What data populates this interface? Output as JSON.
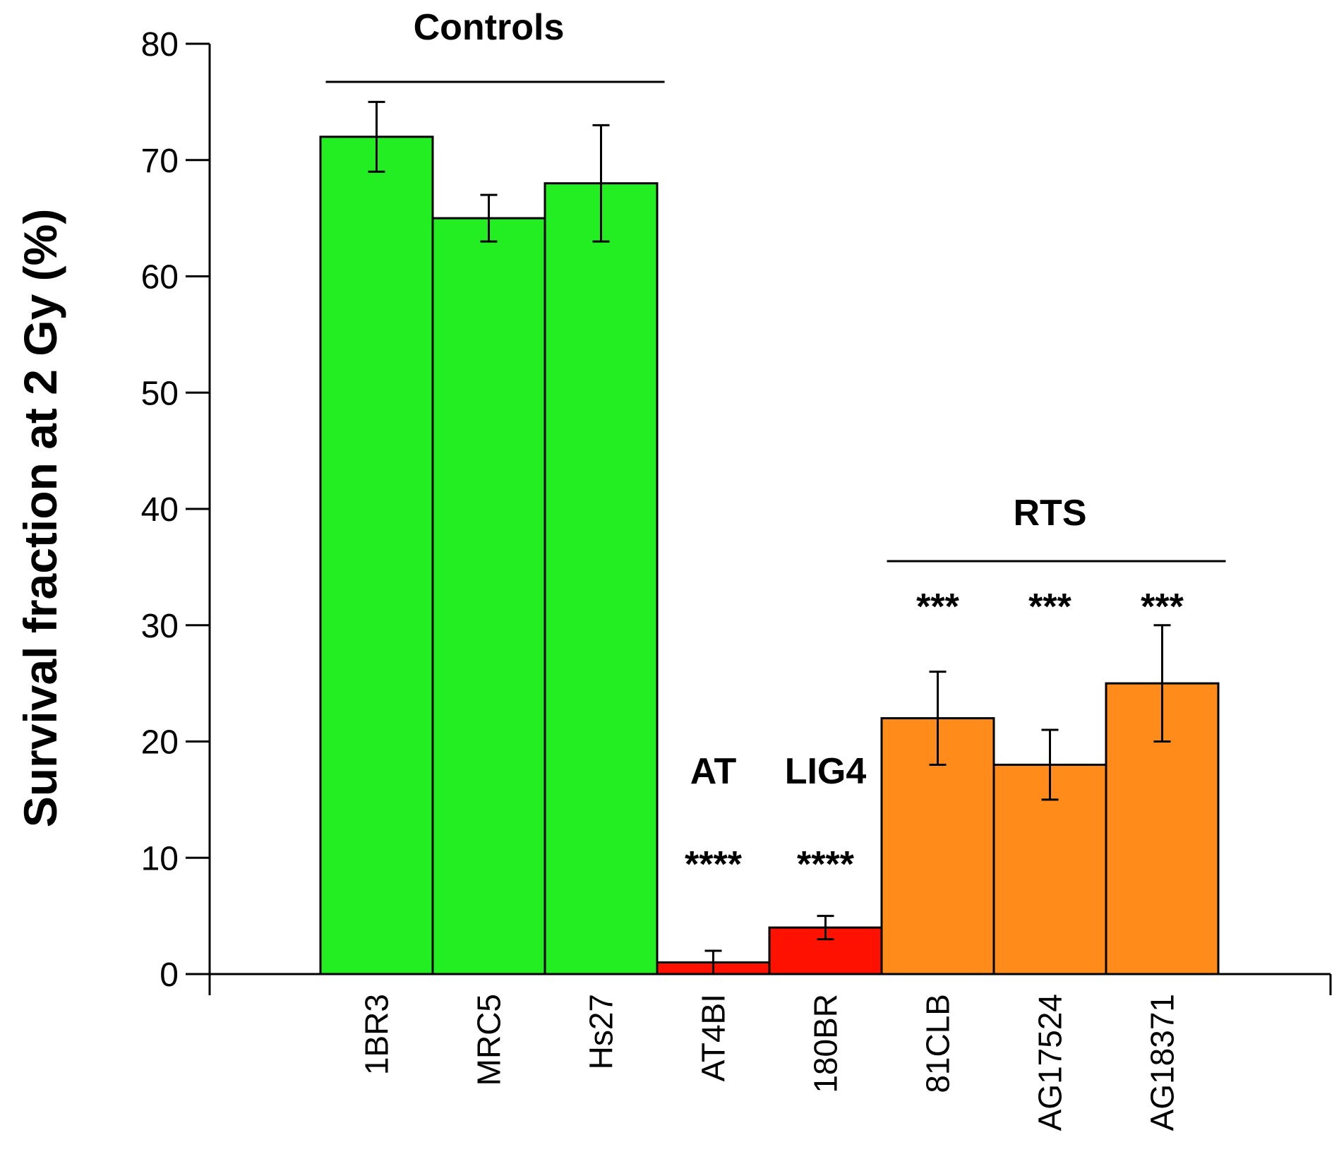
{
  "chart_data": {
    "type": "bar",
    "title": "",
    "xlabel": "",
    "ylabel": "Survival fraction at 2 Gy (%)",
    "ylim": [
      0,
      80
    ],
    "yticks": [
      0,
      10,
      20,
      30,
      40,
      50,
      60,
      70,
      80
    ],
    "categories": [
      "1BR3",
      "MRC5",
      "Hs27",
      "AT4BI",
      "180BR",
      "81CLB",
      "AG17524",
      "AG18371"
    ],
    "values": [
      72,
      65,
      68,
      1,
      4,
      22,
      18,
      25
    ],
    "error_low": [
      69,
      63,
      63,
      0,
      3,
      18,
      15,
      20
    ],
    "error_high": [
      75,
      67,
      73,
      2,
      5,
      26,
      21,
      30
    ],
    "colors": [
      "#22ee22",
      "#22ee22",
      "#22ee22",
      "#ff1100",
      "#ff1100",
      "#ff8c1a",
      "#ff8c1a",
      "#ff8c1a"
    ],
    "significance": [
      "",
      "",
      "",
      "****",
      "****",
      "***",
      "***",
      "***"
    ],
    "groups": [
      {
        "label": "Controls",
        "start": 0,
        "end": 2,
        "bracket": true
      },
      {
        "label": "AT",
        "start": 3,
        "end": 3,
        "bracket": false
      },
      {
        "label": "LIG4",
        "start": 4,
        "end": 4,
        "bracket": false
      },
      {
        "label": "RTS",
        "start": 5,
        "end": 7,
        "bracket": true
      }
    ]
  }
}
